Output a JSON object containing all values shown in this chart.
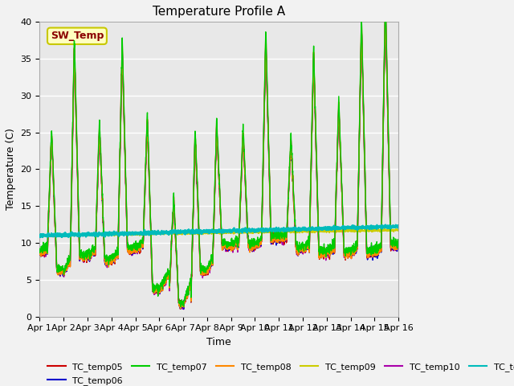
{
  "title": "Temperature Profile A",
  "xlabel": "Time",
  "ylabel": "Temperature (C)",
  "ylim": [
    0,
    40
  ],
  "xlim": [
    0,
    15
  ],
  "xtick_labels": [
    "Apr 1",
    "Apr 2",
    "Apr 3",
    "Apr 4",
    "Apr 5",
    "Apr 6",
    "Apr 7",
    "Apr 8",
    "Apr 9",
    "Apr 10",
    "Apr 11",
    "Apr 12",
    "Apr 13",
    "Apr 14",
    "Apr 15",
    "Apr 16"
  ],
  "ytick_labels": [
    "0",
    "5",
    "10",
    "15",
    "20",
    "25",
    "30",
    "35",
    "40"
  ],
  "ytick_values": [
    0,
    5,
    10,
    15,
    20,
    25,
    30,
    35,
    40
  ],
  "sw_temp_label": "SW_Temp",
  "series_colors": {
    "TC_temp05": "#cc0000",
    "TC_temp06": "#0000cc",
    "TC_temp07": "#00cc00",
    "TC_temp08": "#ff8800",
    "TC_temp09": "#cccc00",
    "TC_temp10": "#aa00aa",
    "TC_temp11": "#00bbbb"
  },
  "bg_color": "#e8e8e8",
  "fig_bg": "#f2f2f2",
  "title_fontsize": 11,
  "axis_label_fontsize": 9,
  "tick_fontsize": 8,
  "legend_fontsize": 8
}
